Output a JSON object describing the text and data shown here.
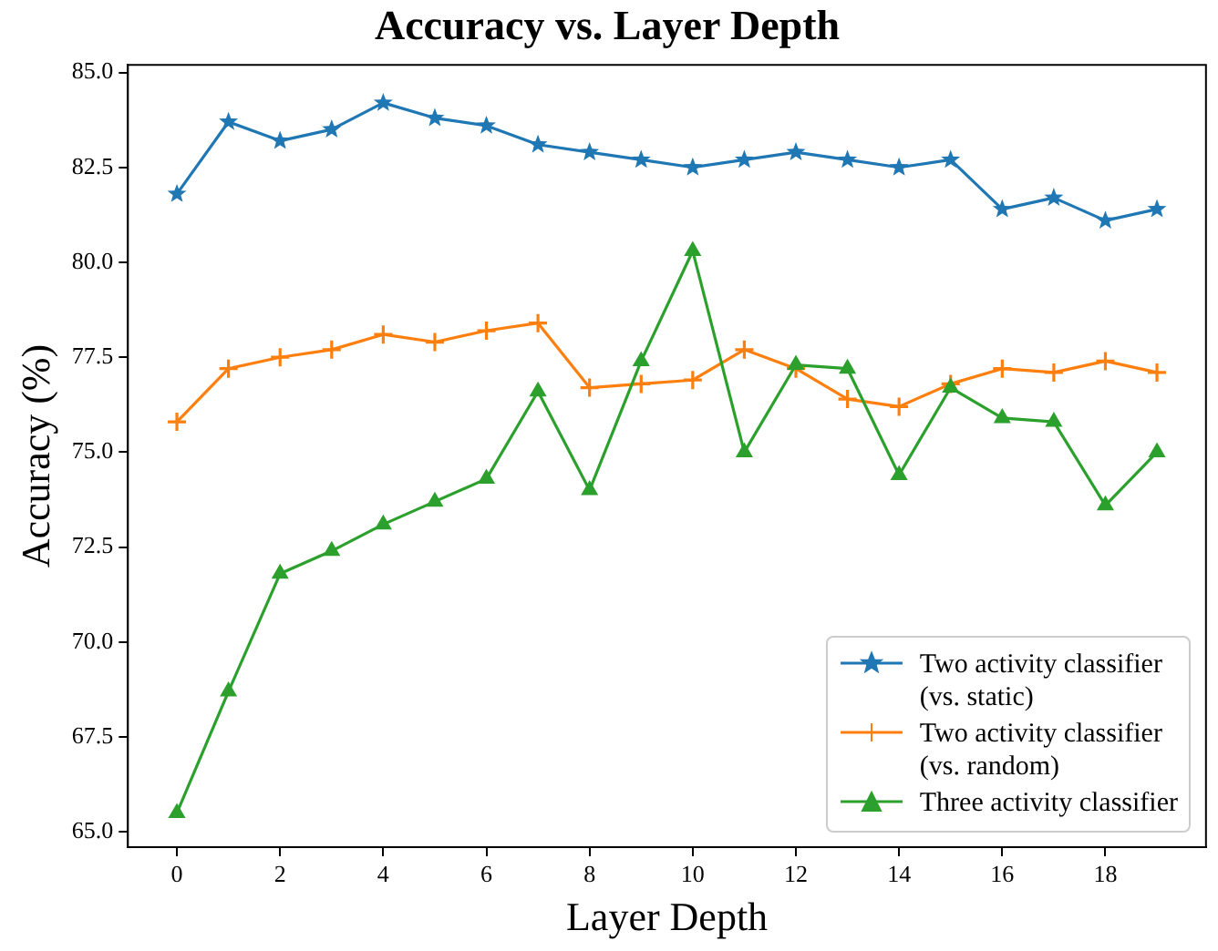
{
  "chart_data": {
    "type": "line",
    "title": "Accuracy vs. Layer Depth",
    "xlabel": "Layer Depth",
    "ylabel": "Accuracy (%)",
    "x": [
      0,
      1,
      2,
      3,
      4,
      5,
      6,
      7,
      8,
      9,
      10,
      11,
      12,
      13,
      14,
      15,
      16,
      17,
      18,
      19
    ],
    "xlim": [
      -0.95,
      19.95
    ],
    "xticks": [
      0,
      2,
      4,
      6,
      8,
      10,
      12,
      14,
      16,
      18
    ],
    "ylim": [
      64.6,
      85.2
    ],
    "yticks": [
      {
        "value": 65,
        "label": "65.0"
      },
      {
        "value": 67.5,
        "label": "67.5"
      },
      {
        "value": 70,
        "label": "70.0"
      },
      {
        "value": 72.5,
        "label": "72.5"
      },
      {
        "value": 75,
        "label": "75.0"
      },
      {
        "value": 77.5,
        "label": "77.5"
      },
      {
        "value": 80,
        "label": "80.0"
      },
      {
        "value": 82.5,
        "label": "82.5"
      },
      {
        "value": 85,
        "label": "85.0"
      }
    ],
    "grid": false,
    "legend": "bottom right",
    "line_style": "solid",
    "series": [
      {
        "name": "Two activity classifier\n(vs. static)",
        "color": "#1f77b4",
        "marker": "star",
        "values": [
          81.8,
          83.7,
          83.2,
          83.5,
          84.2,
          83.8,
          83.6,
          83.1,
          82.9,
          82.7,
          82.5,
          82.7,
          82.9,
          82.7,
          82.5,
          82.7,
          81.4,
          81.7,
          81.1,
          81.4
        ]
      },
      {
        "name": "Two activity classifier\n(vs. random)",
        "color": "#ff7f0e",
        "marker": "cross",
        "values": [
          75.8,
          77.2,
          77.5,
          77.7,
          78.1,
          77.9,
          78.2,
          78.4,
          76.7,
          76.8,
          76.9,
          77.7,
          77.2,
          76.4,
          76.2,
          76.8,
          77.2,
          77.1,
          77.4,
          77.1
        ]
      },
      {
        "name": "Three activity classifier",
        "color": "#2ca02c",
        "marker": "triangle",
        "values": [
          65.5,
          68.7,
          71.8,
          72.4,
          73.1,
          73.7,
          74.3,
          76.6,
          74.0,
          77.4,
          80.3,
          75.0,
          77.3,
          77.2,
          74.4,
          76.7,
          75.9,
          75.8,
          73.6,
          75.0
        ]
      }
    ]
  }
}
